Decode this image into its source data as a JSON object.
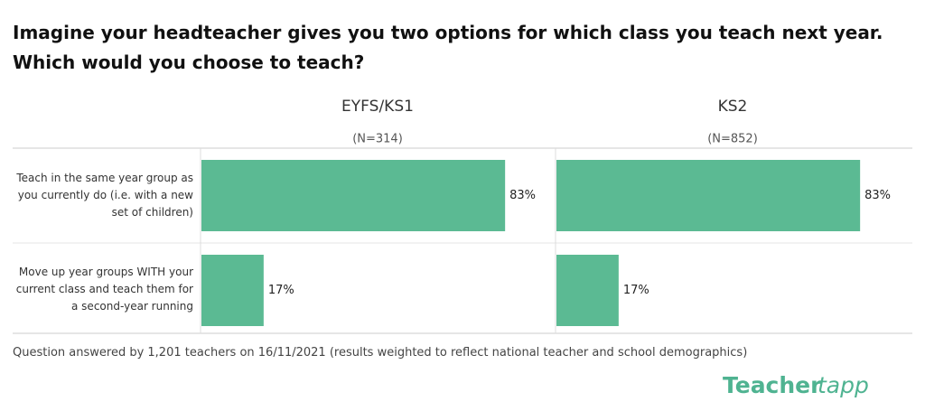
{
  "chart_data": {
    "type": "bar",
    "orientation": "horizontal",
    "title": "Imagine your headteacher gives you two options for which class you teach next year. Which would you choose to teach?",
    "categories": [
      "Teach in the same year group as you currently do (i.e. with a new set of children)",
      "Move up year groups WITH your current class and teach them for a second-year running"
    ],
    "color": "#5bba93",
    "series": [
      {
        "name": "EYFS/KS1",
        "subtitle": "(N=314)",
        "values": [
          83,
          17
        ],
        "value_labels": [
          "83%",
          "17%"
        ]
      },
      {
        "name": "KS2",
        "subtitle": "(N=852)",
        "values": [
          83,
          17
        ],
        "value_labels": [
          "83%",
          "17%"
        ]
      }
    ],
    "footnote": "Question answered by 1,201 teachers on 16/11/2021 (results weighted to reflect national teacher and school demographics)",
    "logo": [
      "Teacher",
      "tapp"
    ]
  }
}
